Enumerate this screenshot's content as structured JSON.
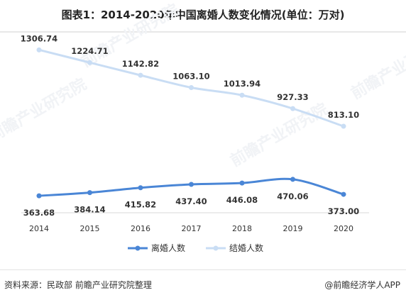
{
  "title": "图表1：2014-2020年中国离婚人数变化情况(单位：万对)",
  "source": "资料来源：民政部 前瞻产业研究院整理",
  "brand": "@前瞻经济学人APP",
  "watermark": "前瞻产业研究院",
  "chart_data": {
    "type": "line",
    "categories": [
      "2014",
      "2015",
      "2016",
      "2017",
      "2018",
      "2019",
      "2020"
    ],
    "series": [
      {
        "name": "离婚人数",
        "color": "#4a86d6",
        "values": [
          363.68,
          384.14,
          415.82,
          437.4,
          446.08,
          470.06,
          373.0
        ]
      },
      {
        "name": "结婚人数",
        "color": "#c9ddf4",
        "values": [
          1306.74,
          1224.71,
          1142.82,
          1063.1,
          1013.94,
          927.33,
          813.1
        ]
      }
    ],
    "data_labels": {
      "离婚人数": [
        "363.68",
        "384.14",
        "415.82",
        "437.40",
        "446.08",
        "470.06",
        "373.00"
      ],
      "结婚人数": [
        "1306.74",
        "1224.71",
        "1142.82",
        "1063.10",
        "1013.94",
        "927.33",
        "813.10"
      ]
    },
    "legend_position": "bottom",
    "grid": false
  }
}
